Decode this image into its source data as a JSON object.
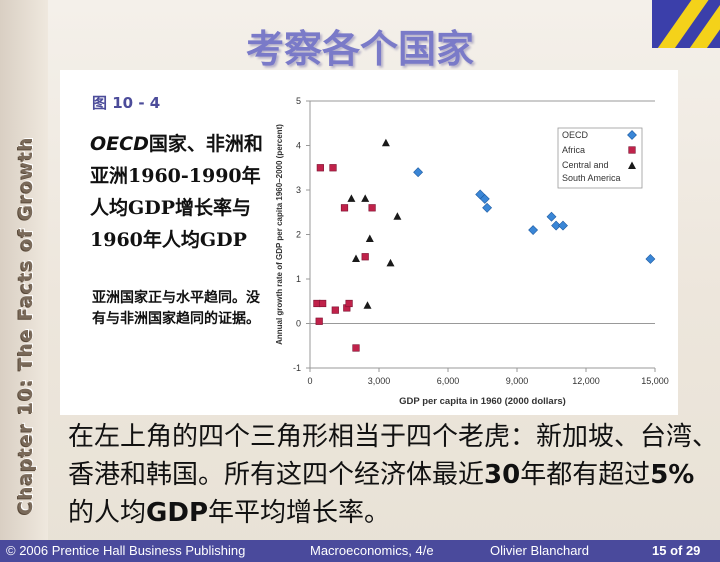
{
  "slide": {
    "title": "考察各个国家",
    "side_text": "Chapter 10: The Facts of Growth",
    "fig_label": "图 10 - 4",
    "caption_latin": "OECD",
    "caption_rest": "国家、非洲和亚洲1960-1990年人均GDP增长率与1960年人均GDP",
    "note": "亚洲国家正与水平趋同。没有与非洲国家趋同的证据。",
    "body_part1": "在左上角的四个三角形相当于四个老虎：新加坡、台湾、香港和韩国。所有这四个经济体最近",
    "body_num1": "30",
    "body_part2": "年都有超过",
    "body_num2": "5%",
    "body_part3": "的人均",
    "body_gdp": "GDP",
    "body_part4": "年平均增长率。"
  },
  "footer": {
    "copyright": "© 2006 Prentice Hall Business Publishing",
    "book": "Macroeconomics, 4/e",
    "author": "Olivier Blanchard",
    "page": "15 of 29"
  },
  "colors": {
    "title": "#7a7ac8",
    "oecd": "#3a86d6",
    "africa": "#c0224a",
    "central_south_america": "#1a1a1a",
    "footer_bg": "#4a4a9c"
  },
  "chart_data": {
    "type": "scatter",
    "xlabel": "GDP per capita in 1960 (2000 dollars)",
    "ylabel": "Annual growth rate of GDP per capita 1960–2000 (percent)",
    "xlim": [
      0,
      15000
    ],
    "ylim": [
      -1,
      5
    ],
    "x_ticks": [
      "0",
      "3,000",
      "6,000",
      "9,000",
      "12,000",
      "15,000"
    ],
    "y_ticks": [
      "-1",
      "0",
      "1",
      "2",
      "3",
      "4",
      "5"
    ],
    "legend_position": "top-right",
    "series": [
      {
        "name": "OECD",
        "marker": "diamond",
        "points": [
          [
            4700,
            3.4
          ],
          [
            7400,
            2.9
          ],
          [
            7600,
            2.8
          ],
          [
            7700,
            2.6
          ],
          [
            9700,
            2.1
          ],
          [
            10500,
            2.4
          ],
          [
            10700,
            2.2
          ],
          [
            11000,
            2.2
          ],
          [
            14800,
            1.45
          ]
        ]
      },
      {
        "name": "Africa",
        "marker": "square",
        "points": [
          [
            450,
            3.5
          ],
          [
            1000,
            3.5
          ],
          [
            1500,
            2.6
          ],
          [
            2700,
            2.6
          ],
          [
            2400,
            1.5
          ],
          [
            300,
            0.45
          ],
          [
            550,
            0.45
          ],
          [
            400,
            0.05
          ],
          [
            1100,
            0.3
          ],
          [
            1600,
            0.35
          ],
          [
            1700,
            0.45
          ],
          [
            2000,
            -0.55
          ]
        ]
      },
      {
        "name": "Central and South America",
        "marker": "triangle",
        "points": [
          [
            3300,
            4.05
          ],
          [
            1800,
            2.8
          ],
          [
            2400,
            2.8
          ],
          [
            3800,
            2.4
          ],
          [
            2600,
            1.9
          ],
          [
            2000,
            1.45
          ],
          [
            3500,
            1.35
          ],
          [
            2500,
            0.4
          ]
        ]
      }
    ]
  }
}
